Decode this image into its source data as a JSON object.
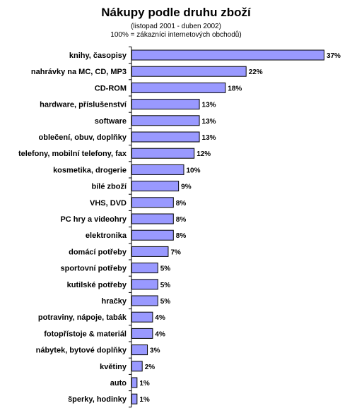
{
  "chart_data": {
    "type": "bar",
    "orientation": "horizontal",
    "title": "Nákupy podle druhu zboží",
    "subtitle": "(listopad 2001 - duben 2002)",
    "subtitle2": "100% = zákazníci internetových obchodů)",
    "value_suffix": "%",
    "bar_color": "#9999ff",
    "bar_border_color": "#000000",
    "xlim": [
      0,
      37
    ],
    "grid": false,
    "legend": "none",
    "categories": [
      "knihy, časopisy",
      "nahrávky na MC, CD, MP3",
      "CD-ROM",
      "hardware, příslušenství",
      "software",
      "oblečení, obuv, doplňky",
      "telefony, mobilní telefony, fax",
      "kosmetika, drogerie",
      "bílé zboží",
      "VHS, DVD",
      "PC hry a videohry",
      "elektronika",
      "domácí potřeby",
      "sportovní potřeby",
      "kutilské potřeby",
      "hračky",
      "potraviny, nápoje, tabák",
      "fotopřístoje & materiál",
      "nábytek, bytové doplňky",
      "květiny",
      "auto",
      "šperky, hodinky"
    ],
    "values": [
      37,
      22,
      18,
      13,
      13,
      13,
      12,
      10,
      9,
      8,
      8,
      8,
      7,
      5,
      5,
      5,
      4,
      4,
      3,
      2,
      1,
      1
    ]
  }
}
